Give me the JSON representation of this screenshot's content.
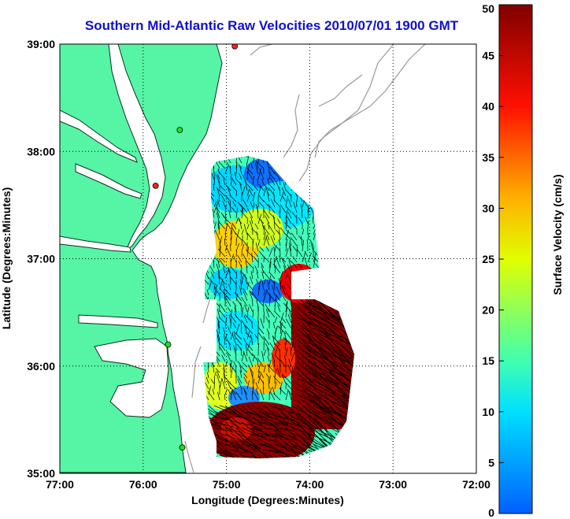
{
  "title": "Southern Mid-Atlantic Raw Velocities 2010/07/01 1900 GMT",
  "x_axis_label": "Longitude (Degrees:Minutes)",
  "y_axis_label": "Latitude (Degrees:Minutes)",
  "colorbar_label": "Surface Velocity (cm/s)",
  "x_ticks": [
    "77:00",
    "76:00",
    "75:00",
    "74:00",
    "73:00",
    "72:00"
  ],
  "y_ticks": [
    "39:00",
    "38:00",
    "37:00",
    "36:00",
    "35:00"
  ],
  "colorbar_ticks": [
    "50",
    "45",
    "40",
    "35",
    "30",
    "25",
    "20",
    "15",
    "10",
    "5",
    "0"
  ],
  "colors": {
    "land": "#55f5a5",
    "title": "#1010d0",
    "grid": "#000000",
    "bathymetry": "#999999"
  },
  "chart_data": {
    "type": "heatmap",
    "title": "Southern Mid-Atlantic Raw Velocities 2010/07/01 1900 GMT",
    "xlabel": "Longitude (Degrees:Minutes)",
    "ylabel": "Latitude (Degrees:Minutes)",
    "xlim": [
      -77.0,
      -72.0
    ],
    "ylim": [
      35.0,
      39.0
    ],
    "colorbar_range": [
      0,
      50
    ],
    "colorbar_units": "Surface Velocity (cm/s)",
    "grid": true,
    "sites": [
      {
        "lon": -74.9,
        "lat": 38.98,
        "color": "red"
      },
      {
        "lon": -75.56,
        "lat": 38.2,
        "color": "green"
      },
      {
        "lon": -75.85,
        "lat": 37.68,
        "color": "red"
      },
      {
        "lon": -75.7,
        "lat": 36.2,
        "color": "green"
      },
      {
        "lon": -75.53,
        "lat": 35.24,
        "color": "green"
      }
    ]
  }
}
